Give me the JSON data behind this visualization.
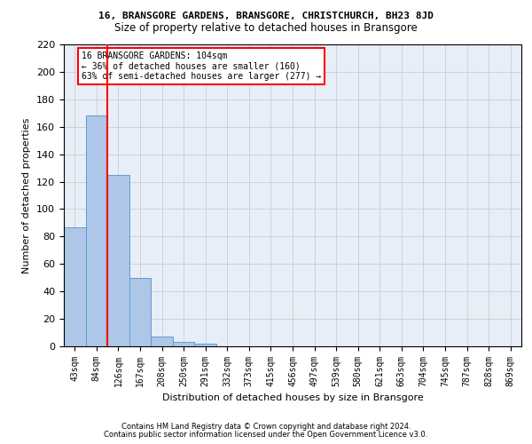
{
  "title": "16, BRANSGORE GARDENS, BRANSGORE, CHRISTCHURCH, BH23 8JD",
  "subtitle": "Size of property relative to detached houses in Bransgore",
  "xlabel": "Distribution of detached houses by size in Bransgore",
  "ylabel": "Number of detached properties",
  "footer_line1": "Contains HM Land Registry data © Crown copyright and database right 2024.",
  "footer_line2": "Contains public sector information licensed under the Open Government Licence v3.0.",
  "bar_labels": [
    "43sqm",
    "84sqm",
    "126sqm",
    "167sqm",
    "208sqm",
    "250sqm",
    "291sqm",
    "332sqm",
    "373sqm",
    "415sqm",
    "456sqm",
    "497sqm",
    "539sqm",
    "580sqm",
    "621sqm",
    "663sqm",
    "704sqm",
    "745sqm",
    "787sqm",
    "828sqm",
    "869sqm"
  ],
  "bar_values": [
    87,
    168,
    125,
    50,
    7,
    3,
    2,
    0,
    0,
    0,
    0,
    0,
    0,
    0,
    0,
    0,
    0,
    0,
    0,
    0,
    0
  ],
  "bar_color": "#aec6e8",
  "bar_edge_color": "#5a9fd4",
  "vline_x": 1.5,
  "vline_color": "red",
  "ylim": [
    0,
    220
  ],
  "yticks": [
    0,
    20,
    40,
    60,
    80,
    100,
    120,
    140,
    160,
    180,
    200,
    220
  ],
  "annotation_text": "16 BRANSGORE GARDENS: 104sqm\n← 36% of detached houses are smaller (160)\n63% of semi-detached houses are larger (277) →",
  "annotation_box_color": "white",
  "annotation_box_edge_color": "red",
  "grid_color": "#cccccc",
  "bg_color": "#e8eef7"
}
